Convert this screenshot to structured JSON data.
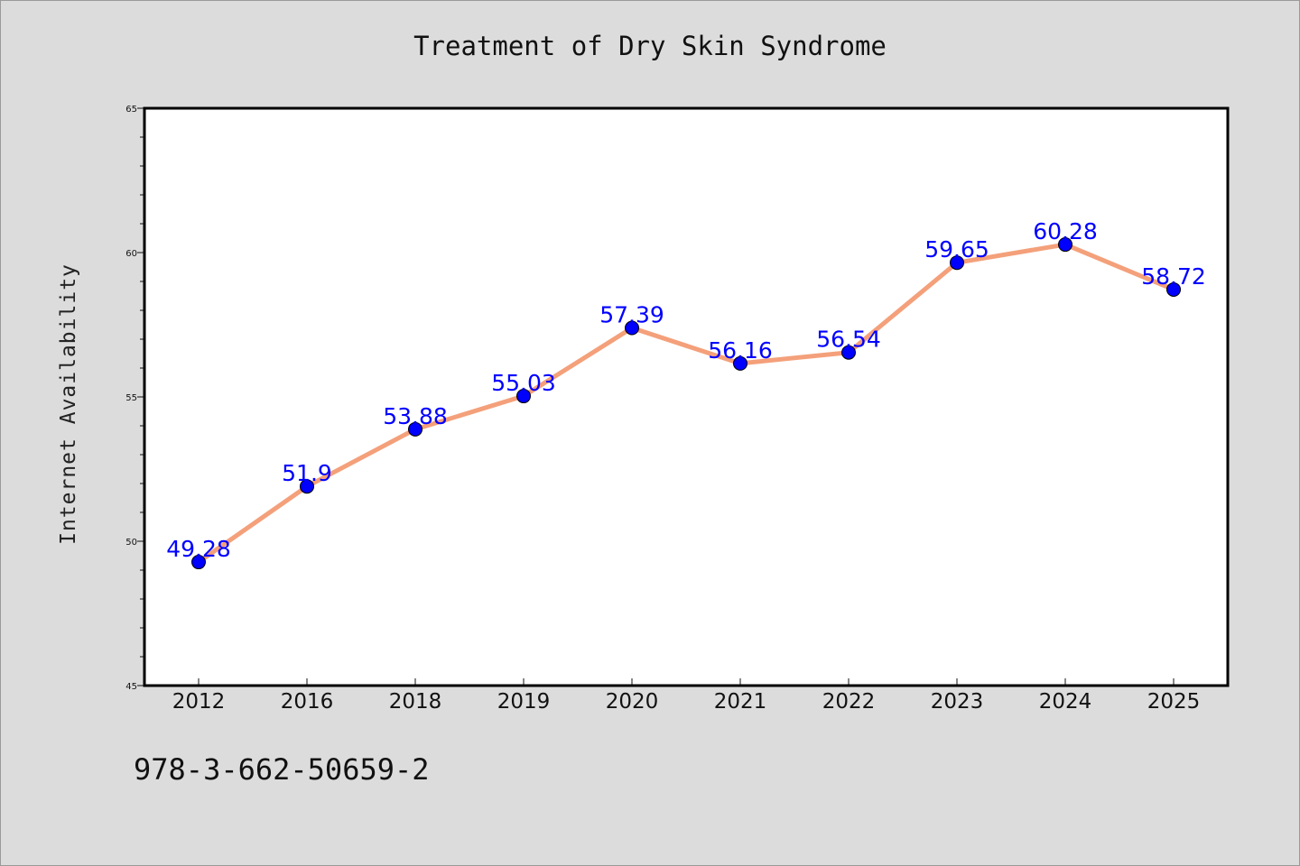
{
  "chart_data": {
    "type": "line",
    "title": "Treatment of Dry Skin Syndrome",
    "xlabel": "",
    "ylabel": "Internet Availability",
    "categories": [
      "2012",
      "2016",
      "2018",
      "2019",
      "2020",
      "2021",
      "2022",
      "2023",
      "2024",
      "2025"
    ],
    "series": [
      {
        "values": [
          49.28,
          51.9,
          53.88,
          55.03,
          57.39,
          56.16,
          56.54,
          59.65,
          60.28,
          58.72
        ],
        "labels": [
          "49.28",
          "51.9",
          "53.88",
          "55.03",
          "57.39",
          "56.16",
          "56.54",
          "59.65",
          "60.28",
          "58.72"
        ]
      }
    ],
    "ylim": [
      45,
      65
    ],
    "yticks": [
      45,
      50,
      55,
      60,
      65
    ],
    "grid": false,
    "colors": {
      "line": "#f4a07a",
      "marker": "#0000ff",
      "label": "#0000ff",
      "plot_background": "#ffffff",
      "page_background": "#dcdcdc"
    }
  },
  "footer": {
    "code": "978-3-662-50659-2"
  }
}
